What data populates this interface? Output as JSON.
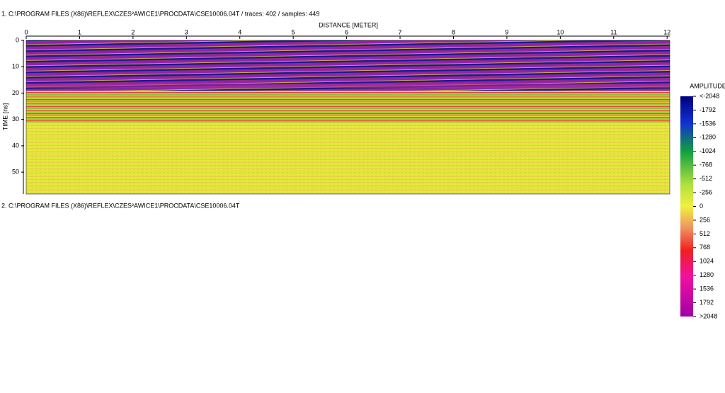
{
  "panel1": {
    "header": "1. C:\\PROGRAM FILES (X86)\\REFLEX\\CZES²AWICE1\\PROCDATA\\CSE10006.04T  / traces: 402 / samples: 449",
    "xlabel": "DISTANCE [METER]",
    "ylabel": "TIME [ns]",
    "xlim": [
      0,
      12.05
    ],
    "xticks": [
      0,
      1,
      2,
      3,
      4,
      5,
      6,
      7,
      8,
      9,
      10,
      11,
      12
    ],
    "ylim": [
      0,
      58.3
    ],
    "yticks": [
      0,
      10,
      20,
      30,
      40,
      50
    ]
  },
  "colorbar": {
    "title": "AMPLITUDE",
    "ticks": [
      {
        "value": -2048,
        "label": "<-2048"
      },
      -1792,
      -1536,
      -1280,
      -1024,
      -768,
      -512,
      -256,
      0,
      256,
      512,
      768,
      1024,
      1280,
      1536,
      1792,
      {
        "value": 2048,
        "label": ">2048"
      }
    ]
  },
  "panel2": {
    "header": "2. C:\\PROGRAM FILES (X86)\\REFLEX\\CZES²AWICE1\\PROCDATA\\CSE10006.04T"
  }
}
